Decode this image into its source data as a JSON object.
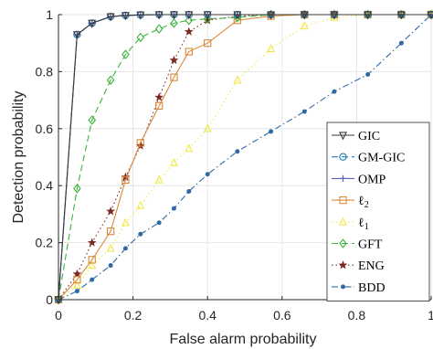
{
  "chart_data": {
    "type": "line",
    "xlabel": "False alarm probability",
    "ylabel": "Detection probability",
    "xlim": [
      0,
      1
    ],
    "ylim": [
      0,
      1
    ],
    "xticks": [
      {
        "value": 0,
        "label": "0"
      },
      {
        "value": 0.2,
        "label": "0.2"
      },
      {
        "value": 0.4,
        "label": "0.4"
      },
      {
        "value": 0.6,
        "label": "0.6"
      },
      {
        "value": 0.8,
        "label": "0.8"
      },
      {
        "value": 1,
        "label": "1"
      }
    ],
    "yticks": [
      {
        "value": 0,
        "label": "0"
      },
      {
        "value": 0.2,
        "label": "0.2"
      },
      {
        "value": 0.4,
        "label": "0.4"
      },
      {
        "value": 0.6,
        "label": "0.6"
      },
      {
        "value": 0.8,
        "label": "0.8"
      },
      {
        "value": 1,
        "label": "1"
      }
    ],
    "grid": true,
    "legend_position": "bottom-right",
    "series": [
      {
        "name": "GIC",
        "color": "#3a3a3a",
        "dash": "solid",
        "marker": "triangle-down",
        "x": [
          0,
          0.05,
          0.09,
          0.14,
          0.18,
          0.22,
          0.27,
          0.31,
          0.35,
          0.4,
          0.48,
          0.57,
          0.66,
          0.74,
          0.83,
          0.92,
          1.0
        ],
        "y": [
          0,
          0.93,
          0.97,
          0.993,
          0.997,
          0.999,
          1,
          1,
          1,
          1,
          1,
          1,
          1,
          1,
          1,
          1,
          1
        ]
      },
      {
        "name": "GM-GIC",
        "color": "#1f77b4",
        "dash": "dashed",
        "marker": "circle",
        "x": [
          0,
          0.05,
          0.09,
          0.14,
          0.18,
          0.22,
          0.27,
          0.31,
          0.35,
          0.4,
          0.48,
          0.57,
          0.66,
          0.74,
          0.83,
          0.92,
          1.0
        ],
        "y": [
          0,
          0.93,
          0.97,
          0.993,
          0.997,
          0.999,
          1,
          1,
          1,
          1,
          1,
          1,
          1,
          1,
          1,
          1,
          1
        ]
      },
      {
        "name": "OMP",
        "color": "#5b63b7",
        "dash": "solid",
        "marker": "plus",
        "x": [
          0,
          0.05,
          0.09,
          0.14,
          0.18,
          0.22,
          0.27,
          0.31,
          0.35,
          0.4,
          0.48,
          0.57,
          0.66,
          0.74,
          0.83,
          0.92,
          1.0
        ],
        "y": [
          0,
          0.93,
          0.97,
          0.993,
          0.997,
          0.999,
          1,
          1,
          1,
          1,
          1,
          1,
          1,
          1,
          1,
          1,
          1
        ]
      },
      {
        "name": "ℓ2",
        "display_main": "ℓ",
        "display_sub": "2",
        "color": "#d98a3a",
        "dash": "solid",
        "marker": "square",
        "x": [
          0,
          0.05,
          0.09,
          0.14,
          0.18,
          0.22,
          0.27,
          0.31,
          0.35,
          0.4,
          0.48,
          0.57,
          0.66,
          0.74,
          0.83,
          0.92,
          1.0
        ],
        "y": [
          0,
          0.07,
          0.14,
          0.24,
          0.42,
          0.55,
          0.68,
          0.78,
          0.87,
          0.9,
          0.98,
          0.995,
          1,
          1,
          1,
          1,
          1
        ]
      },
      {
        "name": "ℓ1",
        "display_main": "ℓ",
        "display_sub": "1",
        "color": "#f2e84a",
        "dash": "dotted",
        "marker": "triangle-up",
        "x": [
          0,
          0.05,
          0.09,
          0.14,
          0.18,
          0.22,
          0.27,
          0.31,
          0.35,
          0.4,
          0.48,
          0.57,
          0.66,
          0.74,
          0.83,
          0.92,
          1.0
        ],
        "y": [
          0,
          0.05,
          0.12,
          0.18,
          0.27,
          0.33,
          0.42,
          0.48,
          0.53,
          0.6,
          0.77,
          0.88,
          0.96,
          0.99,
          1,
          1,
          1
        ]
      },
      {
        "name": "GFT",
        "color": "#3bb33b",
        "dash": "dashed",
        "marker": "diamond",
        "x": [
          0,
          0.05,
          0.09,
          0.14,
          0.18,
          0.22,
          0.27,
          0.31,
          0.35,
          0.4,
          0.48,
          0.57,
          0.66,
          0.74,
          0.83,
          0.92,
          1.0
        ],
        "y": [
          0,
          0.39,
          0.63,
          0.77,
          0.86,
          0.92,
          0.95,
          0.97,
          0.98,
          0.985,
          0.99,
          1,
          1,
          1,
          1,
          1,
          1
        ]
      },
      {
        "name": "ENG",
        "color": "#7a2a22",
        "dash": "dotted",
        "marker": "star",
        "x": [
          0,
          0.05,
          0.09,
          0.14,
          0.18,
          0.22,
          0.27,
          0.31,
          0.35,
          0.4,
          0.48,
          0.57,
          0.66,
          0.74,
          0.83,
          0.92,
          1.0
        ],
        "y": [
          0,
          0.09,
          0.2,
          0.31,
          0.43,
          0.54,
          0.71,
          0.84,
          0.94,
          0.98,
          0.995,
          1,
          1,
          1,
          1,
          1,
          1
        ]
      },
      {
        "name": "BDD",
        "color": "#2f6aa5",
        "dash": "dashdot",
        "marker": "dot",
        "x": [
          0,
          0.05,
          0.09,
          0.14,
          0.18,
          0.22,
          0.27,
          0.31,
          0.35,
          0.4,
          0.48,
          0.57,
          0.66,
          0.74,
          0.83,
          0.92,
          1.0
        ],
        "y": [
          0,
          0.03,
          0.07,
          0.12,
          0.18,
          0.23,
          0.27,
          0.32,
          0.38,
          0.44,
          0.52,
          0.59,
          0.66,
          0.73,
          0.79,
          0.9,
          1.0
        ]
      }
    ]
  }
}
